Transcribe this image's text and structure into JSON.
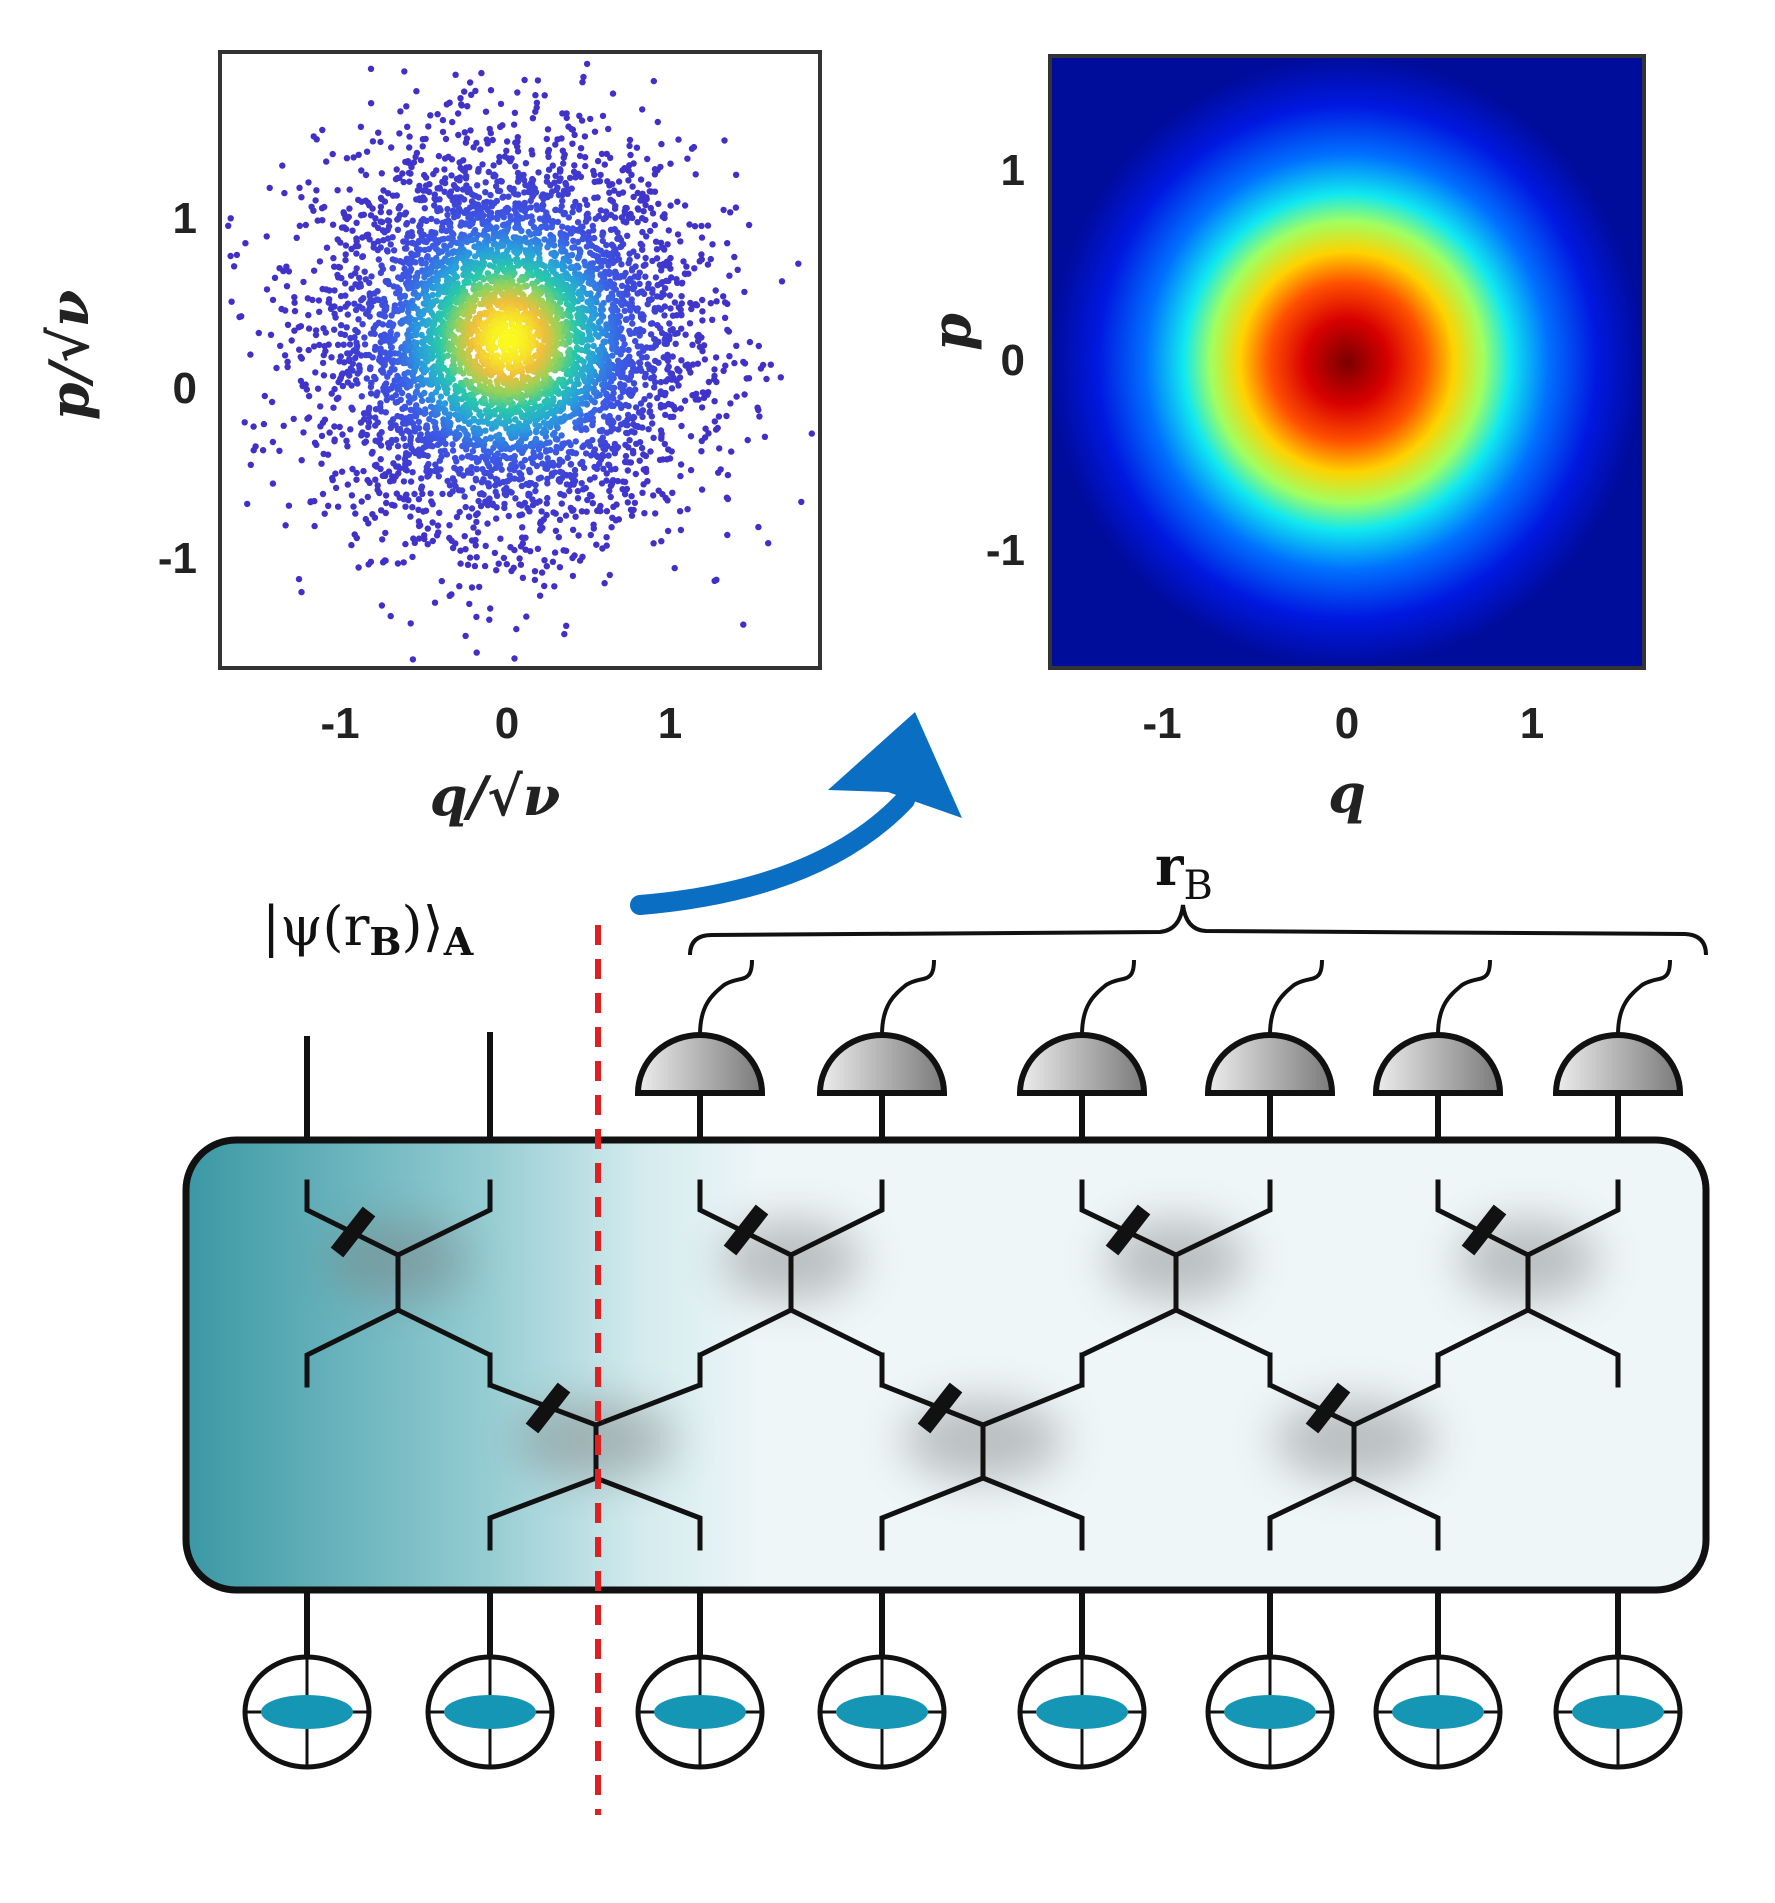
{
  "scatter_plot": {
    "x_ticks": [
      "-1",
      "0",
      "1"
    ],
    "y_ticks": [
      "1",
      "0",
      "-1"
    ],
    "xlabel": "q/√ν",
    "ylabel": "p/√ν"
  },
  "heatmap_plot": {
    "x_ticks": [
      "-1",
      "0",
      "1"
    ],
    "y_ticks": [
      "1",
      "0",
      "-1"
    ],
    "xlabel": "q",
    "ylabel": "p"
  },
  "labels": {
    "state": "|ψ(r",
    "state_sub": "B",
    "state_close": ")⟩",
    "state_sub2": "A",
    "rb": "r",
    "rb_sub": "B"
  },
  "colors": {
    "arrow": "#0a6fc2",
    "cut_line": "#e02020",
    "mode_fill": "#1496b4",
    "box_gradient_left": "#3a98a4",
    "detector_fill": "#a8a8a8",
    "scatter_outer": "#4030c8",
    "heatmap_center": "#800000"
  },
  "chart_data": [
    {
      "type": "scatter",
      "title": "",
      "xlabel": "q/√ν",
      "ylabel": "p/√ν",
      "xlim": [
        -1.75,
        1.9
      ],
      "ylim": [
        -1.75,
        1.9
      ],
      "distribution": "2D Gaussian centered at (0, 0.2), sigma ≈ 0.55, colored by point density",
      "x_ticks": [
        -1,
        0,
        1
      ],
      "y_ticks": [
        -1,
        0,
        1
      ]
    },
    {
      "type": "heatmap",
      "title": "",
      "xlabel": "q",
      "ylabel": "p",
      "xlim": [
        -1.6,
        1.6
      ],
      "ylim": [
        -1.6,
        1.6
      ],
      "distribution": "Gaussian centered at (0, 0), jet colormap",
      "x_ticks": [
        -1,
        0,
        1
      ],
      "y_ticks": [
        -1,
        0,
        1
      ]
    }
  ]
}
